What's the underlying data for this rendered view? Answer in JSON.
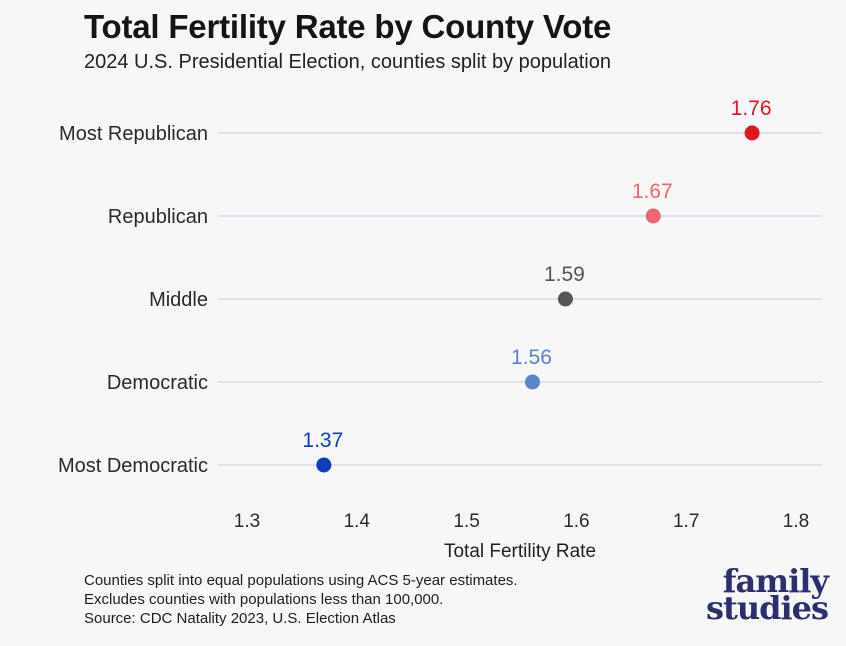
{
  "title": "Total Fertility Rate by County Vote",
  "subtitle": "2024 U.S. Presidential Election, counties split by population",
  "chart_data": {
    "type": "scatter",
    "categories": [
      "Most Republican",
      "Republican",
      "Middle",
      "Democratic",
      "Most Democratic"
    ],
    "values": [
      1.76,
      1.67,
      1.59,
      1.56,
      1.37
    ],
    "value_labels": [
      "1.76",
      "1.67",
      "1.59",
      "1.56",
      "1.37"
    ],
    "colors": [
      "#e0161e",
      "#ec6672",
      "#555555",
      "#5a85c8",
      "#0f3bbf"
    ],
    "xlabel": "Total Fertility Rate",
    "ylabel": "",
    "xlim": [
      1.3,
      1.8
    ],
    "xticks": [
      "1.3",
      "1.4",
      "1.5",
      "1.6",
      "1.7",
      "1.8"
    ],
    "grid": "horizontal"
  },
  "footer": {
    "lines": [
      "Counties split into equal populations using ACS 5-year estimates.",
      "Excludes counties with populations less than 100,000.",
      "Source: CDC Natality 2023, U.S. Election Atlas"
    ]
  },
  "logo": {
    "line1": "family",
    "line2": "studies"
  }
}
